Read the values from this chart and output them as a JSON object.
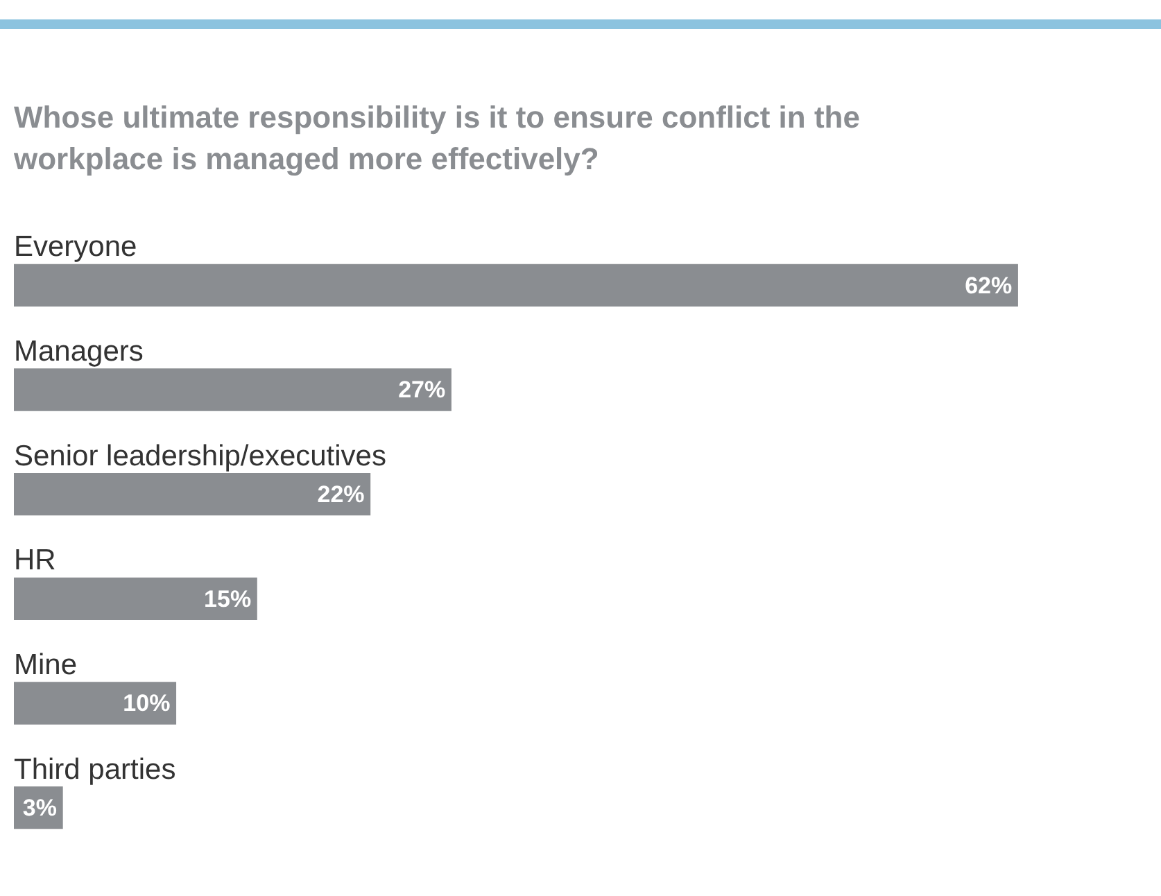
{
  "chart_data": {
    "type": "bar",
    "orientation": "horizontal",
    "title": "Whose ultimate responsibility is it to ensure conflict in the workplace is managed more effectively?",
    "categories": [
      "Everyone",
      "Managers",
      "Senior leadership/executives",
      "HR",
      "Mine",
      "Third parties"
    ],
    "values": [
      62,
      27,
      22,
      15,
      10,
      3
    ],
    "value_labels": [
      "62%",
      "27%",
      "22%",
      "15%",
      "10%",
      "3%"
    ],
    "color": "#8a8d91",
    "legend": false,
    "tick_labels": false
  }
}
